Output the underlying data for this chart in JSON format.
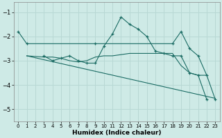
{
  "xlabel": "Humidex (Indice chaleur)",
  "background_color": "#ceeae6",
  "grid_color": "#b8d8d4",
  "line_color": "#1a6b63",
  "xlim": [
    -0.5,
    23.5
  ],
  "ylim": [
    -5.5,
    -0.6
  ],
  "yticks": [
    -5,
    -4,
    -3,
    -2,
    -1
  ],
  "xticks": [
    0,
    1,
    2,
    3,
    4,
    5,
    6,
    7,
    8,
    9,
    10,
    11,
    12,
    13,
    14,
    15,
    16,
    17,
    18,
    19,
    20,
    21,
    22,
    23
  ],
  "lines": [
    {
      "x": [
        0,
        1,
        9,
        18,
        19,
        20,
        21,
        22,
        23
      ],
      "y": [
        -1.8,
        -2.3,
        -2.3,
        -2.3,
        -1.8,
        -2.5,
        -2.8,
        -3.6,
        -4.6
      ],
      "marker": true
    },
    {
      "x": [
        3,
        4,
        5,
        6,
        7,
        8,
        9,
        10,
        11,
        12,
        13,
        14,
        15,
        16,
        17,
        18,
        19,
        20,
        21,
        22
      ],
      "y": [
        -2.8,
        -3.0,
        -2.9,
        -2.8,
        -3.0,
        -3.1,
        -3.1,
        -2.4,
        -1.9,
        -1.2,
        -1.5,
        -1.7,
        -2.0,
        -2.6,
        -2.7,
        -2.8,
        -2.8,
        -3.5,
        -3.6,
        -4.6
      ],
      "marker": true
    },
    {
      "x": [
        1,
        3,
        4,
        5,
        6,
        7,
        8,
        9,
        10,
        11,
        12,
        13,
        14,
        15,
        16,
        17,
        18,
        19,
        20,
        21,
        22
      ],
      "y": [
        -2.8,
        -2.85,
        -2.85,
        -2.9,
        -3.0,
        -3.05,
        -3.0,
        -2.85,
        -2.8,
        -2.8,
        -2.75,
        -2.7,
        -2.7,
        -2.7,
        -2.7,
        -2.7,
        -2.7,
        -3.2,
        -3.5,
        -3.6,
        -3.6
      ],
      "marker": false
    },
    {
      "x": [
        1,
        23
      ],
      "y": [
        -2.8,
        -4.55
      ],
      "marker": false
    }
  ]
}
